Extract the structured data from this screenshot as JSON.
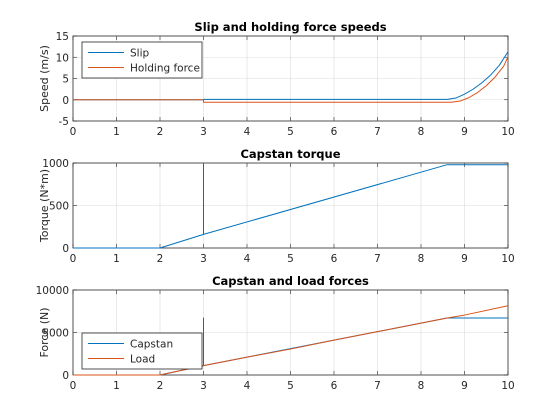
{
  "chart_data": [
    {
      "type": "line",
      "title": "Slip and holding force speeds",
      "xlabel": "",
      "ylabel": "Speed (m/s)",
      "xlim": [
        0,
        10
      ],
      "ylim": [
        -5,
        15
      ],
      "xticks": [
        0,
        1,
        2,
        3,
        4,
        5,
        6,
        7,
        8,
        9,
        10
      ],
      "yticks": [
        -5,
        0,
        5,
        10,
        15
      ],
      "grid": true,
      "legend_position": "top-left",
      "series": [
        {
          "name": "Slip",
          "color": "#0072BD",
          "x": [
            0,
            3,
            3,
            8.6,
            8.8,
            9.0,
            9.2,
            9.4,
            9.6,
            9.8,
            10
          ],
          "y": [
            0,
            0,
            0.1,
            0.1,
            0.4,
            1.3,
            2.5,
            4.0,
            5.8,
            8.1,
            11.3
          ]
        },
        {
          "name": "Holding force",
          "color": "#D95319",
          "x": [
            0,
            3,
            3,
            8.7,
            8.9,
            9.1,
            9.3,
            9.5,
            9.7,
            9.9,
            10
          ],
          "y": [
            0,
            0,
            -0.6,
            -0.6,
            -0.3,
            0.5,
            1.7,
            3.3,
            5.3,
            7.9,
            10.1
          ]
        }
      ]
    },
    {
      "type": "line",
      "title": "Capstan torque",
      "xlabel": "",
      "ylabel": "Torque (N*m)",
      "xlim": [
        0,
        10
      ],
      "ylim": [
        0,
        1000
      ],
      "xticks": [
        0,
        1,
        2,
        3,
        4,
        5,
        6,
        7,
        8,
        9,
        10
      ],
      "yticks": [
        0,
        500,
        1000
      ],
      "grid": true,
      "series": [
        {
          "color": "#0072BD",
          "x": [
            0,
            2,
            3,
            3,
            3,
            8.6,
            10
          ],
          "y": [
            0,
            0,
            160,
            1000,
            160,
            980,
            980
          ]
        }
      ]
    },
    {
      "type": "line",
      "title": "Capstan and load forces",
      "xlabel": "",
      "ylabel": "Force (N)",
      "xlim": [
        0,
        10
      ],
      "ylim": [
        0,
        10000
      ],
      "xticks": [
        0,
        1,
        2,
        3,
        4,
        5,
        6,
        7,
        8,
        9,
        10
      ],
      "yticks": [
        0,
        5000,
        10000
      ],
      "grid": true,
      "legend_position": "bottom-left",
      "series": [
        {
          "name": "Capstan",
          "color": "#0072BD",
          "x": [
            0,
            2,
            3,
            3,
            3,
            8.6,
            10
          ],
          "y": [
            0,
            0,
            1100,
            6700,
            1100,
            6700,
            6700
          ]
        },
        {
          "name": "Load",
          "color": "#D95319",
          "x": [
            0,
            2,
            3,
            4,
            5,
            6,
            7,
            8,
            8.6,
            9,
            10
          ],
          "y": [
            0,
            0,
            1100,
            2100,
            3050,
            4100,
            5100,
            6100,
            6700,
            7050,
            8150
          ]
        }
      ]
    }
  ]
}
